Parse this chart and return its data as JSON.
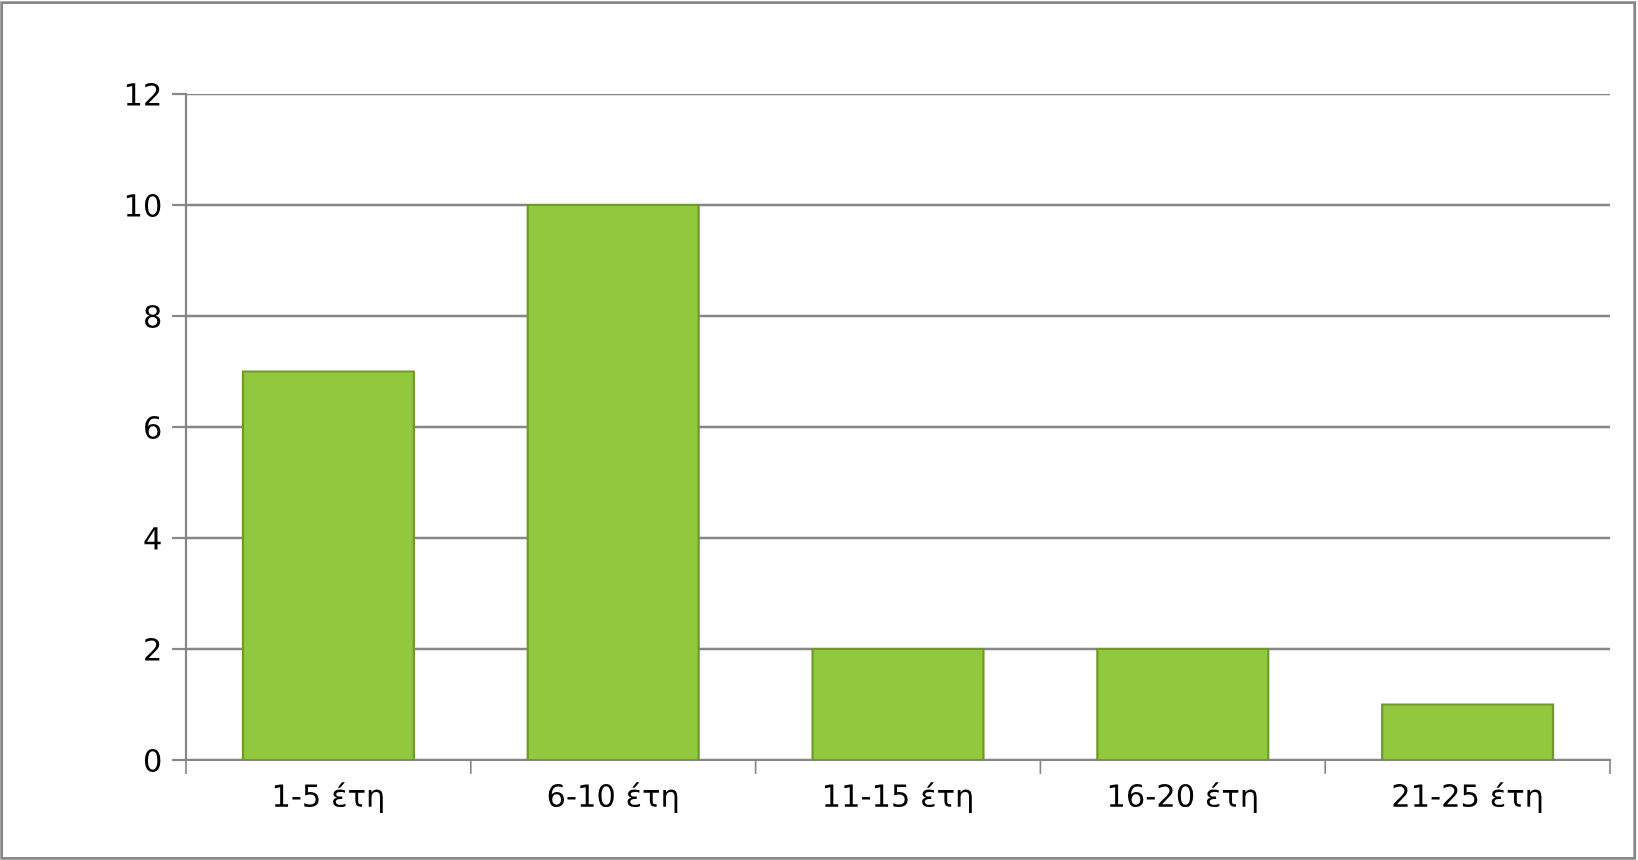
{
  "chart_data": {
    "type": "bar",
    "categories": [
      "1-5 έτη",
      "6-10 έτη",
      "11-15 έτη",
      "16-20 έτη",
      "21-25 έτη"
    ],
    "values": [
      7,
      10,
      2,
      2,
      1
    ],
    "color": "#92c83e",
    "ylim": [
      0,
      12
    ],
    "yticks": [
      0,
      2,
      4,
      6,
      8,
      10,
      12
    ],
    "grid": "y",
    "legend": false
  }
}
